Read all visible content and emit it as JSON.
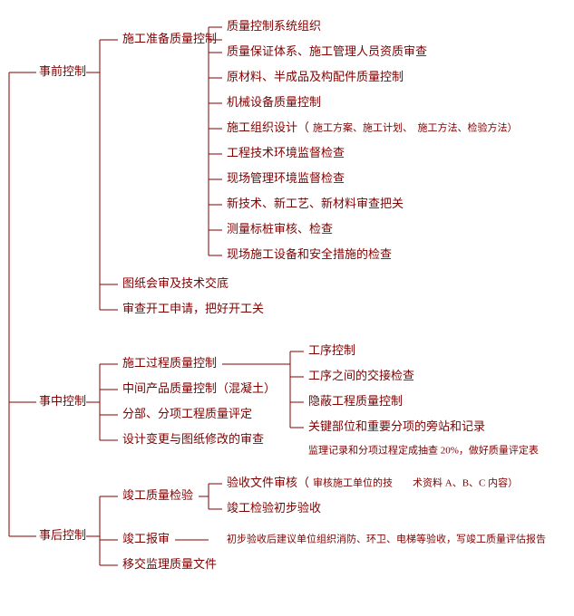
{
  "colors": {
    "line": "#800000",
    "text": "#800000",
    "note": "#800000",
    "background": "#ffffff"
  },
  "font": {
    "family": "SimSun",
    "size_main": 13,
    "size_note": 11
  },
  "root_level": [
    {
      "id": "pre",
      "label": "事前控制"
    },
    {
      "id": "mid",
      "label": "事中控制"
    },
    {
      "id": "post",
      "label": "事后控制"
    }
  ],
  "pre": {
    "children": [
      {
        "id": "pre-prep",
        "label": "施工准备质量控制"
      },
      {
        "id": "pre-draw",
        "label": "图纸会审及技术交底"
      },
      {
        "id": "pre-start",
        "label": "审查开工申请，把好开工关"
      }
    ],
    "prep_children": [
      {
        "id": "pp1",
        "label": "质量控制系统组织"
      },
      {
        "id": "pp2",
        "label": "质量保证体系、施工管理人员资质审查"
      },
      {
        "id": "pp3",
        "label": "原材料、半成品及构配件质量控制"
      },
      {
        "id": "pp4",
        "label": "机械设备质量控制"
      },
      {
        "id": "pp5",
        "label": "施工组织设计（",
        "note": "施工方案、施工计划、　施工方法、检验方法）"
      },
      {
        "id": "pp6",
        "label": "工程技术环境监督检查"
      },
      {
        "id": "pp7",
        "label": "现场管理环境监督检查"
      },
      {
        "id": "pp8",
        "label": "新技术、新工艺、新材料审查把关"
      },
      {
        "id": "pp9",
        "label": "测量标桩审核、检查"
      },
      {
        "id": "pp10",
        "label": "现场施工设备和安全措施的检查"
      }
    ]
  },
  "mid": {
    "children": [
      {
        "id": "mid-proc",
        "label": "施工过程质量控制"
      },
      {
        "id": "mid-inter",
        "label": "中间产品质量控制（混凝土）"
      },
      {
        "id": "mid-part",
        "label": "分部、分项工程质量评定"
      },
      {
        "id": "mid-change",
        "label": "设计变更与图纸修改的审查"
      }
    ],
    "proc_children": [
      {
        "id": "mp1",
        "label": "工序控制"
      },
      {
        "id": "mp2",
        "label": "工序之间的交接检查"
      },
      {
        "id": "mp3",
        "label": "隐蔽工程质量控制"
      },
      {
        "id": "mp4",
        "label": "关键部位和重要分项的旁站和记录"
      }
    ],
    "note": "监理记录和分项过程定成抽查 20%，做好质量评定表"
  },
  "post": {
    "children": [
      {
        "id": "post-acc",
        "label": "竣工质量检验"
      },
      {
        "id": "post-rep",
        "label": "竣工报审"
      },
      {
        "id": "post-hand",
        "label": "移交监理质量文件"
      }
    ],
    "acc_children": [
      {
        "id": "pa1",
        "label": "验收文件审核（",
        "note": "审核施工单位的技　　术资料 A、B、C 内容）"
      },
      {
        "id": "pa2",
        "label": "竣工检验初步验收"
      }
    ],
    "rep_note": "初步验收后建议单位组织消防、环卫、电梯等验收，写竣工质量评估报告"
  }
}
